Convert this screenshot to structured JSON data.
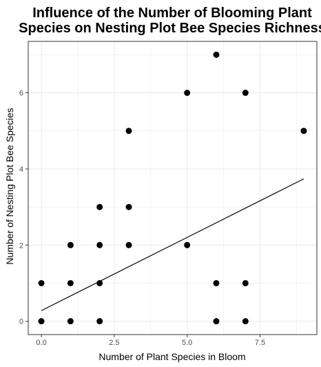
{
  "chart_data": {
    "type": "scatter",
    "title_lines": [
      "Influence of the Number of Blooming Plant",
      "Species on Nesting Plot Bee Species Richness"
    ],
    "xlabel": "Number of Plant Species in Bloom",
    "ylabel": "Number of Nesting Plot Bee Species",
    "xlim": [
      -0.45,
      9.45
    ],
    "ylim": [
      -0.35,
      7.35
    ],
    "x_ticks": [
      0,
      2.5,
      5,
      7.5
    ],
    "x_tick_labels": [
      "0.0",
      "2.5",
      "5.0",
      "7.5"
    ],
    "y_ticks": [
      0,
      2,
      4,
      6
    ],
    "y_tick_labels": [
      "0",
      "2",
      "4",
      "6"
    ],
    "grid": true,
    "points": [
      {
        "x": 0,
        "y": 0
      },
      {
        "x": 0,
        "y": 1
      },
      {
        "x": 1,
        "y": 0
      },
      {
        "x": 1,
        "y": 1
      },
      {
        "x": 1,
        "y": 2
      },
      {
        "x": 2,
        "y": 0
      },
      {
        "x": 2,
        "y": 1
      },
      {
        "x": 2,
        "y": 2
      },
      {
        "x": 2,
        "y": 3
      },
      {
        "x": 3,
        "y": 2
      },
      {
        "x": 3,
        "y": 3
      },
      {
        "x": 3,
        "y": 5
      },
      {
        "x": 5,
        "y": 2
      },
      {
        "x": 5,
        "y": 6
      },
      {
        "x": 6,
        "y": 0
      },
      {
        "x": 6,
        "y": 1
      },
      {
        "x": 6,
        "y": 7
      },
      {
        "x": 7,
        "y": 0
      },
      {
        "x": 7,
        "y": 1
      },
      {
        "x": 7,
        "y": 6
      },
      {
        "x": 9,
        "y": 5
      }
    ],
    "fit_line": {
      "x": [
        0,
        9
      ],
      "y": [
        0.28,
        3.74
      ]
    },
    "colors": {
      "points": "#000000",
      "line": "#000000",
      "grid": "#ebebeb",
      "panel_border": "#333333"
    }
  }
}
